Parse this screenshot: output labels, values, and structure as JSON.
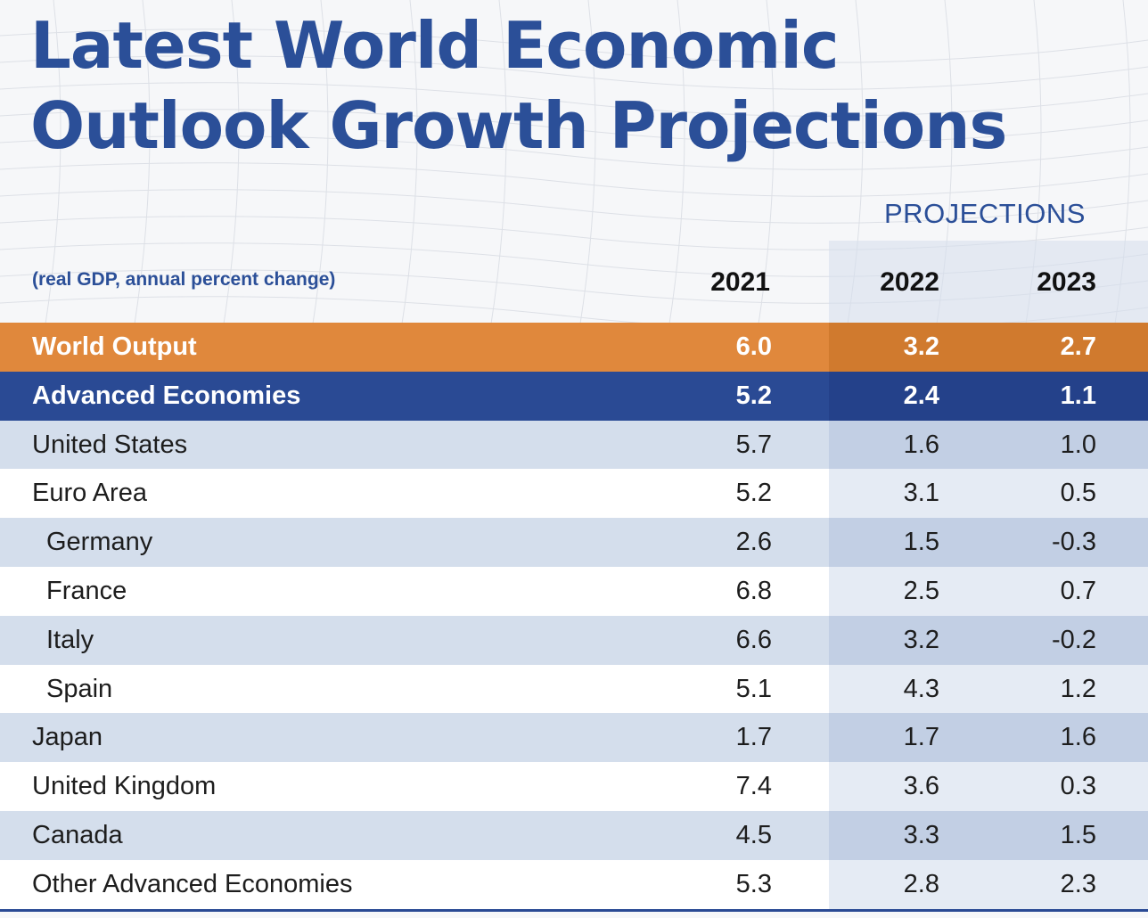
{
  "chart_data": {
    "type": "table",
    "title_lines": [
      "Latest World Economic",
      "Outlook Growth Projections"
    ],
    "projections_label": "PROJECTIONS",
    "units_label": "(real GDP, annual percent change)",
    "columns": [
      "2021",
      "2022",
      "2023"
    ],
    "rows": [
      {
        "label": "World Output",
        "values": [
          "6.0",
          "3.2",
          "2.7"
        ],
        "style": "orange",
        "indent": false
      },
      {
        "label": "Advanced Economies",
        "values": [
          "5.2",
          "2.4",
          "1.1"
        ],
        "style": "blue",
        "indent": false
      },
      {
        "label": "United States",
        "values": [
          "5.7",
          "1.6",
          "1.0"
        ],
        "style": "light",
        "indent": false
      },
      {
        "label": "Euro Area",
        "values": [
          "5.2",
          "3.1",
          "0.5"
        ],
        "style": "white",
        "indent": false
      },
      {
        "label": "Germany",
        "values": [
          "2.6",
          "1.5",
          "-0.3"
        ],
        "style": "light",
        "indent": true
      },
      {
        "label": "France",
        "values": [
          "6.8",
          "2.5",
          "0.7"
        ],
        "style": "white",
        "indent": true
      },
      {
        "label": "Italy",
        "values": [
          "6.6",
          "3.2",
          "-0.2"
        ],
        "style": "light",
        "indent": true
      },
      {
        "label": "Spain",
        "values": [
          "5.1",
          "4.3",
          "1.2"
        ],
        "style": "white",
        "indent": true
      },
      {
        "label": "Japan",
        "values": [
          "1.7",
          "1.7",
          "1.6"
        ],
        "style": "light",
        "indent": false
      },
      {
        "label": "United Kingdom",
        "values": [
          "7.4",
          "3.6",
          "0.3"
        ],
        "style": "white",
        "indent": false
      },
      {
        "label": "Canada",
        "values": [
          "4.5",
          "3.3",
          "1.5"
        ],
        "style": "light",
        "indent": false
      },
      {
        "label": "Other Advanced Economies",
        "values": [
          "5.3",
          "2.8",
          "2.3"
        ],
        "style": "white",
        "indent": false
      }
    ]
  },
  "colors": {
    "title_blue": "#2b4f98",
    "orange_row": "#e0883c",
    "blue_row": "#2a4a94",
    "light_row": "#d4deec",
    "projection_shade": "#c2cfe4"
  }
}
